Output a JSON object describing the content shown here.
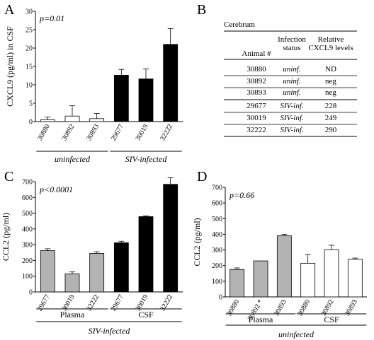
{
  "panels": {
    "A": "A",
    "B": "B",
    "C": "C",
    "D": "D"
  },
  "chart_data": [
    {
      "id": "A",
      "type": "bar",
      "pvalue": "p=0.01",
      "ylabel": "CXCL9 (pg/ml) in CSF",
      "ylim": [
        0,
        30
      ],
      "yticks": [
        0,
        5,
        10,
        15,
        20,
        25,
        30
      ],
      "categories": [
        "30880",
        "30892",
        "30893",
        "29677",
        "30019",
        "32222"
      ],
      "values": [
        0.5,
        1.5,
        0.8,
        12.6,
        11.6,
        21.0
      ],
      "errors": [
        0.7,
        2.8,
        1.4,
        1.6,
        2.7,
        4.3
      ],
      "colors": [
        "#ffffff",
        "#ffffff",
        "#ffffff",
        "#000000",
        "#000000",
        "#000000"
      ],
      "groups": [
        {
          "label": "uninfected",
          "italic": true,
          "start": 0,
          "end": 2
        },
        {
          "label": "SIV-infected",
          "italic": true,
          "start": 3,
          "end": 5
        }
      ]
    },
    {
      "id": "C",
      "type": "bar",
      "pvalue": "p<0.0001",
      "ylabel": "CCL2 (pg/ml)",
      "ylim": [
        0,
        700
      ],
      "yticks": [
        0,
        100,
        200,
        300,
        400,
        500,
        600,
        700
      ],
      "categories": [
        "29677",
        "30019",
        "32222",
        "29677",
        "30019",
        "32222"
      ],
      "values": [
        262,
        115,
        245,
        312,
        478,
        683
      ],
      "errors": [
        12,
        12,
        10,
        10,
        5,
        42
      ],
      "colors": [
        "#b3b3b3",
        "#b3b3b3",
        "#b3b3b3",
        "#000000",
        "#000000",
        "#000000"
      ],
      "groups": [
        {
          "label": "Plasma",
          "italic": false,
          "start": 0,
          "end": 2
        },
        {
          "label": "CSF",
          "italic": false,
          "start": 3,
          "end": 5
        }
      ],
      "footer": "SIV-infected"
    },
    {
      "id": "D",
      "type": "bar",
      "pvalue": "p=0.66",
      "ylabel": "CCL2 (pg/ml)",
      "ylim": [
        0,
        700
      ],
      "yticks": [
        0,
        100,
        200,
        300,
        400,
        500,
        600,
        700
      ],
      "categories": [
        "30880",
        "30892 *",
        "30893",
        "30880",
        "30892",
        "30893"
      ],
      "values": [
        175,
        230,
        390,
        215,
        302,
        240
      ],
      "errors": [
        10,
        0,
        10,
        55,
        28,
        8
      ],
      "colors": [
        "#b3b3b3",
        "#b3b3b3",
        "#b3b3b3",
        "#ffffff",
        "#ffffff",
        "#ffffff"
      ],
      "groups": [
        {
          "label": "Plasma",
          "italic": false,
          "start": 0,
          "end": 2
        },
        {
          "label": "CSF",
          "italic": false,
          "start": 3,
          "end": 5
        }
      ],
      "footer": "uninfected"
    }
  ],
  "table": {
    "title": "Cerebrum",
    "headers": [
      [
        "Animal #"
      ],
      [
        "Infection",
        "status"
      ],
      [
        "Relative",
        "CXCL9 levels"
      ]
    ],
    "rows": [
      {
        "animal": "30880",
        "status": "uninf.",
        "level": "ND"
      },
      {
        "animal": "30892",
        "status": "uninf.",
        "level": "neg"
      },
      {
        "animal": "30893",
        "status": "uninf.",
        "level": "neg"
      },
      {
        "animal": "29677",
        "status": "SIV-inf.",
        "level": "228"
      },
      {
        "animal": "30019",
        "status": "SIV-inf.",
        "level": "249"
      },
      {
        "animal": "32222",
        "status": "SIV-inf.",
        "level": "290"
      }
    ]
  }
}
